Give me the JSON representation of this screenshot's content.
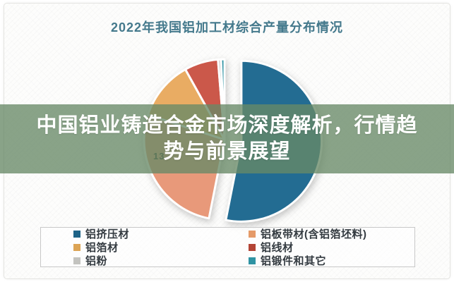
{
  "header": {
    "title": "2022年我国铝加工材综合产量分布情况",
    "title_color": "#44798c"
  },
  "banner": {
    "line1": "中国铝业铸造合金市场深度解析，行情趋",
    "line2": "势与前景展望",
    "bg_color": "rgba(104,137,103,0.78)",
    "text_color": "#ffffff"
  },
  "chart_data": {
    "type": "pie",
    "title": "2022年我国铝加工材综合产量分布情况",
    "labels": [
      "铝挤压材",
      "铝板带材(含铝箔坯料)",
      "铝箔材",
      "铝线材",
      "铝粉",
      "铝锻件和其它"
    ],
    "values": [
      53.1,
      26.9,
      11.9,
      6.8,
      0.6,
      0.7
    ],
    "colors": [
      "#236c92",
      "#e8997a",
      "#e9ac63",
      "#cb584a",
      "#c3c3bf",
      "#2f93a3"
    ],
    "exploded": [
      true,
      false,
      false,
      false,
      false,
      false
    ],
    "slice_border_color": "#ffffff",
    "legend_position": "bottom",
    "partial_data_label": "13"
  },
  "legend": {
    "border_color": "#c8c8c8",
    "text_color": "#333a40",
    "items": [
      {
        "label": "铝挤压材",
        "color": "#1e6387"
      },
      {
        "label": "铝板带材(含铝箔坯料)",
        "color": "#e59a68"
      },
      {
        "label": "铝箔材",
        "color": "#dca455"
      },
      {
        "label": "铝线材",
        "color": "#b34435"
      },
      {
        "label": "铝粉",
        "color": "#c3c3bf"
      },
      {
        "label": "铝锻件和其它",
        "color": "#2f93a3"
      }
    ]
  }
}
